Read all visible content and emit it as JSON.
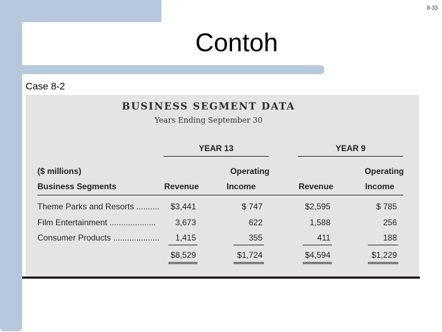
{
  "slide": {
    "number": "8-33",
    "title": "Contoh",
    "case_label": "Case  8-2"
  },
  "table": {
    "title": "BUSINESS SEGMENT DATA",
    "subtitle": "Years Ending September 30",
    "year_a": "YEAR 13",
    "year_b": "YEAR 9",
    "header_left_1": "($ millions)",
    "header_left_2": "Business Segments",
    "col_revenue": "Revenue",
    "col_operating": "Operating",
    "col_income": "Income",
    "rows": [
      {
        "label": "Theme Parks and Resorts ..........",
        "rev13": "$3,441",
        "inc13": "$  747",
        "rev9": "$2,595",
        "inc9": "$  785"
      },
      {
        "label": "Film Entertainment ....................",
        "rev13": "3,673",
        "inc13": "622",
        "rev9": "1,588",
        "inc9": "256"
      },
      {
        "label": "Consumer Products ....................",
        "rev13": "1,415",
        "inc13": "355",
        "rev9": "411",
        "inc9": "188"
      }
    ],
    "totals": {
      "rev13": "$8,529",
      "inc13": "$1,724",
      "rev9": "$4,594",
      "inc9": "$1,229"
    }
  }
}
